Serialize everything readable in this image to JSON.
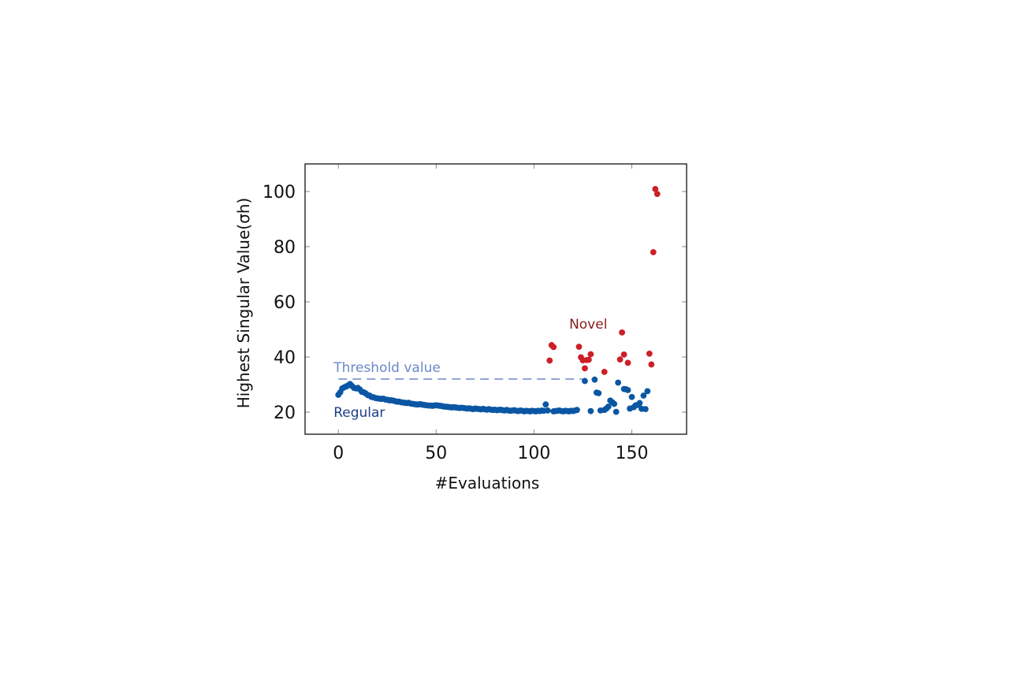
{
  "chart_data": {
    "type": "scatter",
    "title": "",
    "xlabel": "#Evaluations",
    "ylabel": "Highest Singular Value(σh)",
    "xlim": [
      -17,
      178
    ],
    "ylim": [
      12,
      110
    ],
    "x_ticks": [
      0,
      50,
      100,
      150
    ],
    "y_ticks": [
      20,
      40,
      60,
      80,
      100
    ],
    "grid": "ticks-only",
    "threshold": {
      "label": "Threshold value",
      "y": 32,
      "x_range": [
        0,
        125
      ],
      "color": "#6b88c8"
    },
    "annotations": [
      {
        "text": "Regular",
        "x": 0,
        "y": 20,
        "color": "#1f3f8a"
      },
      {
        "text": "Novel",
        "x": 118,
        "y": 52,
        "color": "#8b1a1a"
      }
    ],
    "series": [
      {
        "key": "regular",
        "color": "#0b56a4",
        "points": [
          [
            0,
            26.3
          ],
          [
            1,
            27.2
          ],
          [
            2,
            28.6
          ],
          [
            3,
            29.0
          ],
          [
            4,
            29.3
          ],
          [
            5,
            29.7
          ],
          [
            6,
            30.2
          ],
          [
            7,
            29.5
          ],
          [
            8,
            28.8
          ],
          [
            9,
            28.6
          ],
          [
            10,
            28.8
          ],
          [
            11,
            28.2
          ],
          [
            12,
            27.4
          ],
          [
            13,
            27.2
          ],
          [
            14,
            26.8
          ],
          [
            15,
            26.2
          ],
          [
            16,
            26.0
          ],
          [
            17,
            25.5
          ],
          [
            18,
            25.4
          ],
          [
            19,
            25.1
          ],
          [
            20,
            25.0
          ],
          [
            21,
            24.9
          ],
          [
            22,
            24.8
          ],
          [
            23,
            24.9
          ],
          [
            24,
            24.6
          ],
          [
            25,
            24.5
          ],
          [
            26,
            24.3
          ],
          [
            27,
            24.3
          ],
          [
            28,
            24.2
          ],
          [
            29,
            24.0
          ],
          [
            30,
            23.8
          ],
          [
            31,
            23.8
          ],
          [
            32,
            23.6
          ],
          [
            33,
            23.5
          ],
          [
            34,
            23.4
          ],
          [
            35,
            23.3
          ],
          [
            36,
            23.4
          ],
          [
            37,
            23.1
          ],
          [
            38,
            23.0
          ],
          [
            39,
            22.9
          ],
          [
            40,
            22.8
          ],
          [
            41,
            22.8
          ],
          [
            42,
            22.9
          ],
          [
            43,
            22.7
          ],
          [
            44,
            22.6
          ],
          [
            45,
            22.5
          ],
          [
            46,
            22.4
          ],
          [
            47,
            22.4
          ],
          [
            48,
            22.3
          ],
          [
            49,
            22.4
          ],
          [
            50,
            22.5
          ],
          [
            51,
            22.4
          ],
          [
            52,
            22.3
          ],
          [
            53,
            22.2
          ],
          [
            54,
            22.0
          ],
          [
            55,
            22.0
          ],
          [
            56,
            21.9
          ],
          [
            57,
            21.8
          ],
          [
            58,
            21.7
          ],
          [
            59,
            21.8
          ],
          [
            60,
            21.7
          ],
          [
            61,
            21.6
          ],
          [
            62,
            21.5
          ],
          [
            63,
            21.6
          ],
          [
            64,
            21.5
          ],
          [
            65,
            21.4
          ],
          [
            66,
            21.3
          ],
          [
            67,
            21.4
          ],
          [
            68,
            21.2
          ],
          [
            69,
            21.1
          ],
          [
            70,
            21.3
          ],
          [
            71,
            21.2
          ],
          [
            72,
            21.1
          ],
          [
            73,
            21.0
          ],
          [
            74,
            21.2
          ],
          [
            75,
            21.0
          ],
          [
            76,
            20.9
          ],
          [
            77,
            21.1
          ],
          [
            78,
            20.9
          ],
          [
            79,
            20.8
          ],
          [
            80,
            20.9
          ],
          [
            81,
            20.7
          ],
          [
            82,
            20.8
          ],
          [
            83,
            20.9
          ],
          [
            84,
            20.7
          ],
          [
            85,
            20.6
          ],
          [
            86,
            20.8
          ],
          [
            87,
            20.6
          ],
          [
            88,
            20.5
          ],
          [
            89,
            20.6
          ],
          [
            90,
            20.7
          ],
          [
            91,
            20.5
          ],
          [
            92,
            20.4
          ],
          [
            93,
            20.6
          ],
          [
            94,
            20.5
          ],
          [
            95,
            20.3
          ],
          [
            96,
            20.5
          ],
          [
            97,
            20.4
          ],
          [
            98,
            20.3
          ],
          [
            99,
            20.5
          ],
          [
            100,
            20.4
          ],
          [
            101,
            20.3
          ],
          [
            102,
            20.5
          ],
          [
            103,
            20.4
          ],
          [
            104,
            20.6
          ],
          [
            105,
            20.5
          ],
          [
            106,
            22.8
          ],
          [
            107,
            20.6
          ],
          [
            110,
            20.3
          ],
          [
            111,
            20.4
          ],
          [
            112,
            20.5
          ],
          [
            113,
            20.6
          ],
          [
            114,
            20.4
          ],
          [
            115,
            20.3
          ],
          [
            116,
            20.5
          ],
          [
            117,
            20.4
          ],
          [
            118,
            20.3
          ],
          [
            119,
            20.5
          ],
          [
            120,
            20.4
          ],
          [
            121,
            20.6
          ],
          [
            122,
            20.8
          ],
          [
            126,
            31.3
          ],
          [
            129,
            20.4
          ],
          [
            131,
            31.8
          ],
          [
            132,
            27.1
          ],
          [
            133,
            26.9
          ],
          [
            134,
            20.6
          ],
          [
            136,
            20.8
          ],
          [
            137,
            21.3
          ],
          [
            138,
            22.0
          ],
          [
            139,
            24.2
          ],
          [
            140,
            23.6
          ],
          [
            141,
            23.0
          ],
          [
            142,
            20.1
          ],
          [
            143,
            30.7
          ],
          [
            146,
            28.4
          ],
          [
            147,
            28.3
          ],
          [
            148,
            28.0
          ],
          [
            149,
            21.3
          ],
          [
            150,
            25.5
          ],
          [
            151,
            21.8
          ],
          [
            152,
            22.5
          ],
          [
            153,
            22.6
          ],
          [
            154,
            23.3
          ],
          [
            155,
            21.2
          ],
          [
            156,
            26.0
          ],
          [
            157,
            21.1
          ],
          [
            158,
            27.6
          ]
        ]
      },
      {
        "key": "novel",
        "color": "#cc1f27",
        "points": [
          [
            108,
            38.7
          ],
          [
            109,
            44.3
          ],
          [
            110,
            43.6
          ],
          [
            123,
            43.7
          ],
          [
            124,
            39.9
          ],
          [
            125,
            38.8
          ],
          [
            126,
            35.9
          ],
          [
            127,
            38.9
          ],
          [
            128,
            39.0
          ],
          [
            129,
            41.0
          ],
          [
            136,
            34.6
          ],
          [
            144,
            39.1
          ],
          [
            145,
            48.9
          ],
          [
            146,
            40.9
          ],
          [
            148,
            37.9
          ],
          [
            159,
            41.2
          ],
          [
            160,
            37.3
          ],
          [
            161,
            78.0
          ],
          [
            162,
            100.9
          ],
          [
            163,
            99.1
          ]
        ]
      }
    ]
  }
}
